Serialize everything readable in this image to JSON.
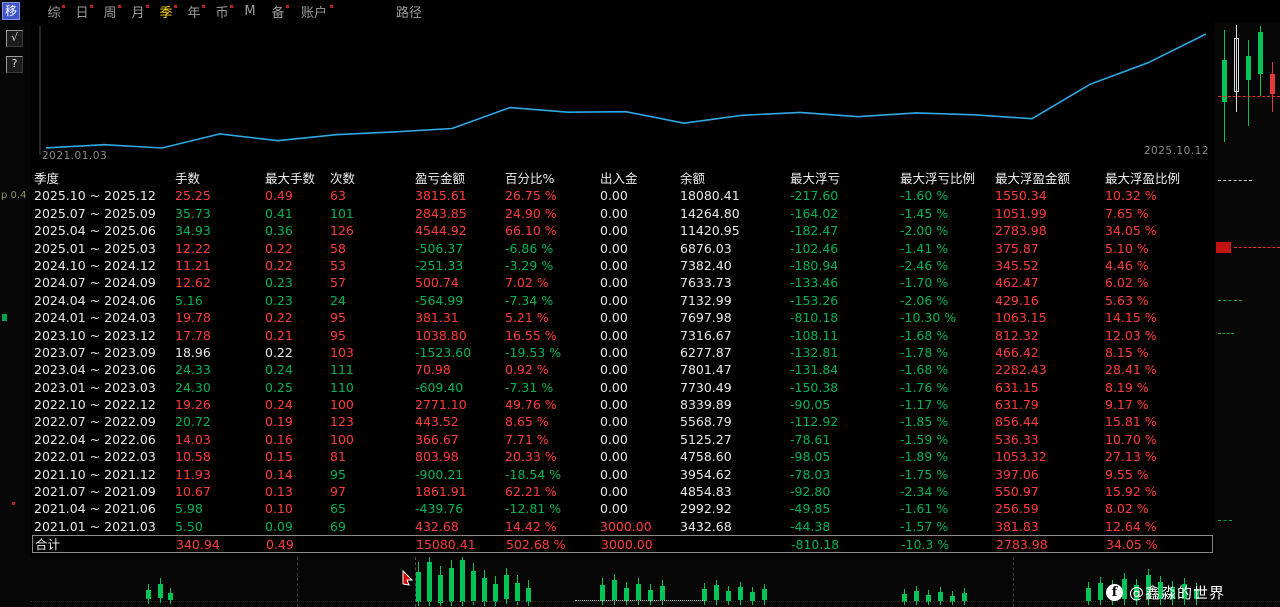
{
  "colors": {
    "red": "#ff3b3b",
    "green": "#00b355",
    "white": "#e8e8e8",
    "line": "#2ea9e6",
    "tab_active": "#ffd800"
  },
  "toolbar": {
    "move_button": "移",
    "active_tab": "季",
    "tabs": [
      {
        "label": "综",
        "name": "summary",
        "dot": true
      },
      {
        "label": "日",
        "name": "daily",
        "dot": true
      },
      {
        "label": "周",
        "name": "weekly",
        "dot": true
      },
      {
        "label": "月",
        "name": "monthly",
        "dot": true
      },
      {
        "label": "季",
        "name": "quarterly",
        "dot": true
      },
      {
        "label": "年",
        "name": "yearly",
        "dot": true
      },
      {
        "label": "币",
        "name": "currency",
        "dot": true
      },
      {
        "label": "M",
        "name": "m",
        "dot": false
      },
      {
        "label": "备",
        "name": "memo",
        "dot": true
      },
      {
        "label": "账户",
        "name": "account",
        "dot": true,
        "wide": true
      }
    ],
    "path_label": "路径"
  },
  "side_buttons": {
    "check": "√",
    "help": "?"
  },
  "chart": {
    "start_date": "2021.01.03",
    "end_date": "2025.10.12"
  },
  "chart_data": {
    "type": "line",
    "title": "",
    "xlabel": "",
    "ylabel": "",
    "x": [
      "2021.01",
      "2021.03",
      "2021.06",
      "2021.09",
      "2021.12",
      "2022.03",
      "2022.06",
      "2022.09",
      "2022.12",
      "2023.03",
      "2023.06",
      "2023.09",
      "2023.12",
      "2024.03",
      "2024.06",
      "2024.09",
      "2024.12",
      "2025.03",
      "2025.06",
      "2025.09",
      "2025.12"
    ],
    "values": [
      3000.0,
      3432.68,
      2992.92,
      4854.83,
      3954.62,
      4758.6,
      5125.27,
      5568.79,
      8339.89,
      7730.49,
      7801.47,
      6277.87,
      7316.67,
      7697.98,
      7132.99,
      7633.73,
      7382.4,
      6876.03,
      11420.95,
      14264.8,
      18080.41
    ],
    "x_start_label": "2021.01.03",
    "x_end_label": "2025.10.12",
    "ylim": [
      2900,
      18200
    ],
    "grid": false,
    "legend": [],
    "line_color": "#2ea9e6"
  },
  "table": {
    "headers": [
      "季度",
      "手数",
      "最大手数",
      "次数",
      "盈亏金额",
      "百分比%",
      "出入金",
      "余额",
      "最大浮亏",
      "最大浮亏比例",
      "最大浮盈金额",
      "最大浮盈比例"
    ],
    "rows": [
      {
        "period": "2025.10 ~ 2025.12",
        "values": [
          "25.25",
          "0.49",
          "63",
          "3815.61",
          "26.75 %",
          "0.00",
          "18080.41",
          "-217.60",
          "-1.60 %",
          "1550.34",
          "10.32 %"
        ],
        "colors": "rrrrrwwggrr"
      },
      {
        "period": "2025.07 ~ 2025.09",
        "values": [
          "35.73",
          "0.41",
          "101",
          "2843.85",
          "24.90 %",
          "0.00",
          "14264.80",
          "-164.02",
          "-1.45 %",
          "1051.99",
          "7.65 %"
        ],
        "colors": "gggrrwwggrr"
      },
      {
        "period": "2025.04 ~ 2025.06",
        "values": [
          "34.93",
          "0.36",
          "126",
          "4544.92",
          "66.10 %",
          "0.00",
          "11420.95",
          "-182.47",
          "-2.00 %",
          "2783.98",
          "34.05 %"
        ],
        "colors": "ggrrrwwggrr"
      },
      {
        "period": "2025.01 ~ 2025.03",
        "values": [
          "12.22",
          "0.22",
          "58",
          "-506.37",
          "-6.86 %",
          "0.00",
          "6876.03",
          "-102.46",
          "-1.41 %",
          "375.87",
          "5.10 %"
        ],
        "colors": "rrrggwwggrr"
      },
      {
        "period": "2024.10 ~ 2024.12",
        "values": [
          "11.21",
          "0.22",
          "53",
          "-251.33",
          "-3.29 %",
          "0.00",
          "7382.40",
          "-180.94",
          "-2.46 %",
          "345.52",
          "4.46 %"
        ],
        "colors": "rrrggwwggrr"
      },
      {
        "period": "2024.07 ~ 2024.09",
        "values": [
          "12.62",
          "0.23",
          "57",
          "500.74",
          "7.02 %",
          "0.00",
          "7633.73",
          "-133.46",
          "-1.70 %",
          "462.47",
          "6.02 %"
        ],
        "colors": "rgrrrwwggrr"
      },
      {
        "period": "2024.04 ~ 2024.06",
        "values": [
          "5.16",
          "0.23",
          "24",
          "-564.99",
          "-7.34 %",
          "0.00",
          "7132.99",
          "-153.26",
          "-2.06 %",
          "429.16",
          "5.63 %"
        ],
        "colors": "gggggwwggrr"
      },
      {
        "period": "2024.01 ~ 2024.03",
        "values": [
          "19.78",
          "0.22",
          "95",
          "381.31",
          "5.21 %",
          "0.00",
          "7697.98",
          "-810.18",
          "-10.30 %",
          "1063.15",
          "14.15 %"
        ],
        "colors": "rrrrrwwggrr"
      },
      {
        "period": "2023.10 ~ 2023.12",
        "values": [
          "17.78",
          "0.21",
          "95",
          "1038.80",
          "16.55 %",
          "0.00",
          "7316.67",
          "-108.11",
          "-1.68 %",
          "812.32",
          "12.03 %"
        ],
        "colors": "rrrrrwwggrr"
      },
      {
        "period": "2023.07 ~ 2023.09",
        "values": [
          "18.96",
          "0.22",
          "103",
          "-1523.60",
          "-19.53 %",
          "0.00",
          "6277.87",
          "-132.81",
          "-1.78 %",
          "466.42",
          "8.15 %"
        ],
        "colors": "wwrggwwggrr"
      },
      {
        "period": "2023.04 ~ 2023.06",
        "values": [
          "24.33",
          "0.24",
          "111",
          "70.98",
          "0.92 %",
          "0.00",
          "7801.47",
          "-131.84",
          "-1.68 %",
          "2282.43",
          "28.41 %"
        ],
        "colors": "gggrrwwggrr"
      },
      {
        "period": "2023.01 ~ 2023.03",
        "values": [
          "24.30",
          "0.25",
          "110",
          "-609.40",
          "-7.31 %",
          "0.00",
          "7730.49",
          "-150.38",
          "-1.76 %",
          "631.15",
          "8.19 %"
        ],
        "colors": "gggggwwggrr"
      },
      {
        "period": "2022.10 ~ 2022.12",
        "values": [
          "19.26",
          "0.24",
          "100",
          "2771.10",
          "49.76 %",
          "0.00",
          "8339.89",
          "-90.05",
          "-1.17 %",
          "631.79",
          "9.17 %"
        ],
        "colors": "rrrrrwwggrr"
      },
      {
        "period": "2022.07 ~ 2022.09",
        "values": [
          "20.72",
          "0.19",
          "123",
          "443.52",
          "8.65 %",
          "0.00",
          "5568.79",
          "-112.92",
          "-1.85 %",
          "856.44",
          "15.81 %"
        ],
        "colors": "grrrrwwggrr"
      },
      {
        "period": "2022.04 ~ 2022.06",
        "values": [
          "14.03",
          "0.16",
          "100",
          "366.67",
          "7.71 %",
          "0.00",
          "5125.27",
          "-78.61",
          "-1.59 %",
          "536.33",
          "10.70 %"
        ],
        "colors": "rrrrrwwggrr"
      },
      {
        "period": "2022.01 ~ 2022.03",
        "values": [
          "10.58",
          "0.15",
          "81",
          "803.98",
          "20.33 %",
          "0.00",
          "4758.60",
          "-98.05",
          "-1.89 %",
          "1053.32",
          "27.13 %"
        ],
        "colors": "rrrrrwwggrr"
      },
      {
        "period": "2021.10 ~ 2021.12",
        "values": [
          "11.93",
          "0.14",
          "95",
          "-900.21",
          "-18.54 %",
          "0.00",
          "3954.62",
          "-78.03",
          "-1.75 %",
          "397.06",
          "9.55 %"
        ],
        "colors": "rrgggwwggrr"
      },
      {
        "period": "2021.07 ~ 2021.09",
        "values": [
          "10.67",
          "0.13",
          "97",
          "1861.91",
          "62.21 %",
          "0.00",
          "4854.83",
          "-92.80",
          "-2.34 %",
          "550.97",
          "15.92 %"
        ],
        "colors": "rrrrrwwggrr"
      },
      {
        "period": "2021.04 ~ 2021.06",
        "values": [
          "5.98",
          "0.10",
          "65",
          "-439.76",
          "-12.81 %",
          "0.00",
          "2992.92",
          "-49.85",
          "-1.61 %",
          "256.59",
          "8.02 %"
        ],
        "colors": "grgggwwggrr"
      },
      {
        "period": "2021.01 ~ 2021.03",
        "values": [
          "5.50",
          "0.09",
          "69",
          "432.68",
          "14.42 %",
          "3000.00",
          "3432.68",
          "-44.38",
          "-1.57 %",
          "381.83",
          "12.64 %"
        ],
        "colors": "gggrrrwggrr"
      }
    ],
    "total": {
      "label": "合计",
      "values": [
        "340.94",
        "0.49",
        "",
        "15080.41",
        "502.68 %",
        "3000.00",
        "",
        "-810.18",
        "-10.3 %",
        "2783.98",
        "34.05 %"
      ],
      "colors": "rrwrrrwggrr"
    }
  },
  "fragments": {
    "left_text": "p 0.4"
  },
  "watermark": {
    "icon": "f",
    "text": "@鑫淼的世界"
  }
}
